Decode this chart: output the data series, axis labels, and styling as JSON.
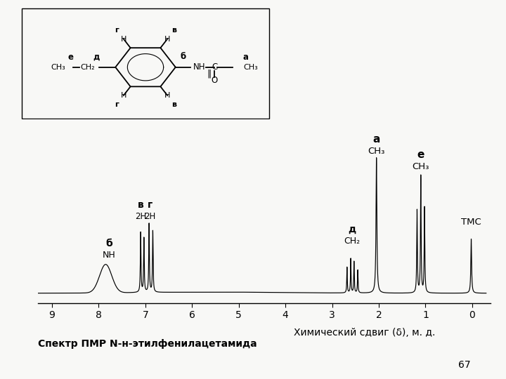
{
  "title": "Спектр ПМР N-н-этилфенилацетамида",
  "xlabel": "Химический сдвиг (δ), м. д.",
  "background": "#f8f8f6",
  "page_number": "67"
}
